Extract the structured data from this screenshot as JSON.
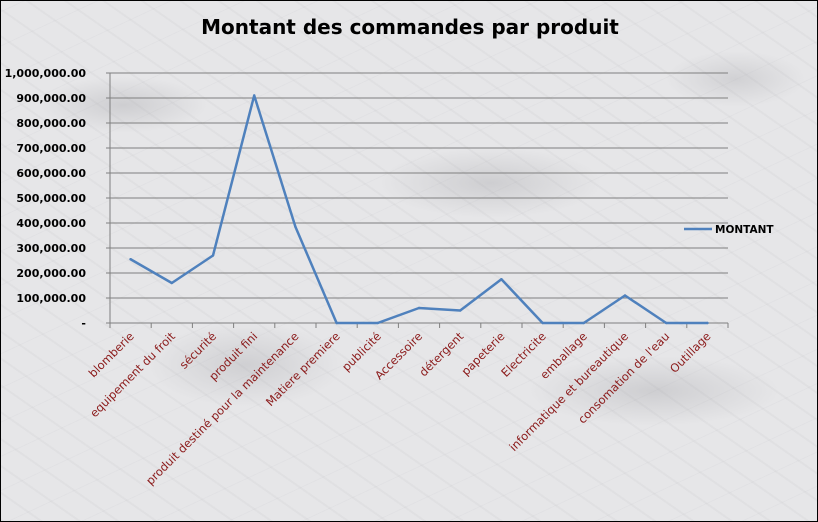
{
  "chart_data": {
    "type": "line",
    "title": "Montant des commandes par produit",
    "xlabel": "",
    "ylabel": "",
    "ylim": [
      0,
      1000000
    ],
    "yticks": [
      {
        "value": 0,
        "label": "-"
      },
      {
        "value": 100000,
        "label": "100,000.00"
      },
      {
        "value": 200000,
        "label": "200,000.00"
      },
      {
        "value": 300000,
        "label": "300,000.00"
      },
      {
        "value": 400000,
        "label": "400,000.00"
      },
      {
        "value": 500000,
        "label": "500,000.00"
      },
      {
        "value": 600000,
        "label": "600,000.00"
      },
      {
        "value": 700000,
        "label": "700,000.00"
      },
      {
        "value": 800000,
        "label": "800,000.00"
      },
      {
        "value": 900000,
        "label": "900,000.00"
      },
      {
        "value": 1000000,
        "label": "1,000,000.00"
      }
    ],
    "categories": [
      "blomberie",
      "equipement du froit",
      "sécurité",
      "produit fini",
      "produit destiné pour la maintenance",
      "Matiere premiere",
      "publicité",
      "Accessoire",
      "détergent",
      "papeterie",
      "Electricite",
      "emballage",
      "informatique et bureautique",
      "consomation de l'eau",
      "Outillage"
    ],
    "series": [
      {
        "name": "MONTANT",
        "color": "#4f81bd",
        "values": [
          255000,
          160000,
          270000,
          910000,
          385000,
          0,
          0,
          60000,
          50000,
          175000,
          0,
          0,
          110000,
          0,
          0
        ]
      }
    ],
    "grid": true,
    "legend": "right",
    "tick_label_color": "#8b1a1a"
  }
}
